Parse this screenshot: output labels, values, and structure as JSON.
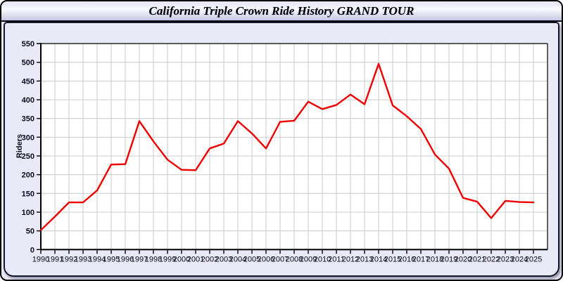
{
  "header": {
    "title": "California Triple Crown Ride History GRAND TOUR"
  },
  "chart_data": {
    "type": "line",
    "title": "California Triple Crown Ride History GRAND TOUR",
    "xlabel": "",
    "ylabel": "Riders",
    "x": [
      1990,
      1991,
      1992,
      1993,
      1994,
      1995,
      1996,
      1997,
      1998,
      1999,
      2000,
      2001,
      2002,
      2003,
      2004,
      2005,
      2006,
      2007,
      2008,
      2009,
      2010,
      2011,
      2012,
      2013,
      2014,
      2015,
      2016,
      2017,
      2018,
      2019,
      2020,
      2021,
      2022,
      2023,
      2024,
      2025
    ],
    "series": [
      {
        "name": "Riders",
        "values": [
          52,
          88,
          126,
          126,
          158,
          227,
          228,
          343,
          289,
          240,
          213,
          212,
          270,
          283,
          343,
          310,
          270,
          341,
          344,
          395,
          375,
          386,
          414,
          388,
          496,
          385,
          356,
          322,
          254,
          216,
          138,
          128,
          84,
          130,
          127,
          126
        ]
      }
    ],
    "ylim": [
      0,
      550
    ],
    "yticks": [
      0,
      50,
      100,
      150,
      200,
      250,
      300,
      350,
      400,
      450,
      500,
      550
    ],
    "grid": "on",
    "legend": "none",
    "line_color": "#ee0000",
    "grid_color": "#cccccc",
    "plot_bg": "#ffffff",
    "page_bg": "#e9e9f7"
  }
}
